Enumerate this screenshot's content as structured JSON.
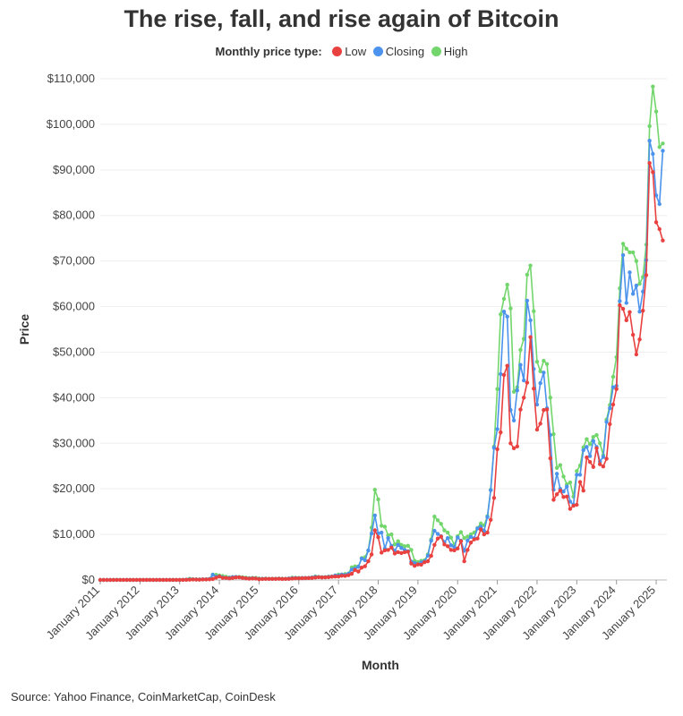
{
  "chart_data": {
    "type": "line",
    "title": "The rise, fall, and rise again of Bitcoin",
    "legend_title": "Monthly price type:",
    "legend_placement": "top",
    "xlabel": "Month",
    "ylabel": "Price",
    "ylim": [
      0,
      110000
    ],
    "yticks": [
      "$0",
      "$10,000",
      "$20,000",
      "$30,000",
      "$40,000",
      "$50,000",
      "$60,000",
      "$70,000",
      "$80,000",
      "$90,000",
      "$100,000",
      "$110,000"
    ],
    "xticks": [
      "January 2011",
      "January 2012",
      "January 2013",
      "January 2014",
      "January 2015",
      "January 2016",
      "January 2017",
      "January 2018",
      "January 2019",
      "January 2020",
      "January 2021",
      "January 2022",
      "January 2023",
      "January 2024",
      "January 2025"
    ],
    "grid": "horizontal",
    "series": [
      {
        "name": "Low",
        "key": "low",
        "color": "#e8413f"
      },
      {
        "name": "Closing",
        "key": "close",
        "color": "#4b93ec"
      },
      {
        "name": "High",
        "key": "high",
        "color": "#72d66c"
      }
    ],
    "years": [
      {
        "year": 2011,
        "low": [
          0.3,
          0.8,
          0.7,
          0.6,
          3,
          10,
          12,
          7,
          4,
          2,
          2,
          3
        ],
        "close": [
          0.9,
          1,
          0.8,
          3.5,
          8.7,
          16.1,
          13.4,
          8.2,
          5.1,
          3.2,
          3,
          4.7
        ],
        "high": [
          1.1,
          1.1,
          0.9,
          3.5,
          9,
          30,
          16,
          13,
          8,
          5,
          3.5,
          4.7
        ]
      },
      {
        "year": 2012,
        "low": [
          4.5,
          4.3,
          4.5,
          4.8,
          4.9,
          5.2,
          6.5,
          7.5,
          10,
          10,
          10.5,
          12
        ],
        "close": [
          5.5,
          4.9,
          4.9,
          5,
          5.2,
          6.7,
          9.3,
          10.2,
          12.4,
          11.2,
          12.6,
          13.5
        ],
        "high": [
          7,
          6.2,
          5.4,
          5.3,
          5.3,
          6.8,
          9.7,
          15.4,
          12.5,
          12.8,
          12.9,
          13.9
        ]
      },
      {
        "year": 2013,
        "low": [
          13,
          20,
          33,
          70,
          110,
          90,
          68,
          100,
          120,
          130,
          200,
          500
        ],
        "close": [
          20,
          33,
          93,
          139,
          129,
          97,
          106,
          135,
          133,
          198,
          1130,
          732
        ],
        "high": [
          20,
          33,
          95,
          260,
          140,
          130,
          110,
          140,
          140,
          200,
          1200,
          1150
        ]
      },
      {
        "year": 2014,
        "low": [
          740,
          450,
          450,
          340,
          440,
          560,
          570,
          450,
          360,
          290,
          320,
          310
        ],
        "close": [
          800,
          550,
          450,
          445,
          625,
          640,
          590,
          480,
          390,
          340,
          380,
          320
        ],
        "high": [
          1000,
          860,
          700,
          560,
          630,
          680,
          650,
          600,
          500,
          410,
          460,
          460
        ]
      },
      {
        "year": 2015,
        "low": [
          170,
          215,
          240,
          220,
          230,
          220,
          260,
          200,
          225,
          235,
          300,
          360
        ],
        "close": [
          220,
          255,
          245,
          235,
          230,
          265,
          285,
          230,
          235,
          315,
          380,
          430
        ],
        "high": [
          320,
          265,
          300,
          260,
          250,
          270,
          305,
          285,
          260,
          330,
          500,
          470
        ]
      },
      {
        "year": 2016,
        "low": [
          360,
          370,
          405,
          415,
          440,
          530,
          600,
          540,
          575,
          605,
          690,
          740
        ],
        "close": [
          370,
          435,
          415,
          450,
          530,
          670,
          625,
          575,
          610,
          700,
          745,
          960
        ],
        "high": [
          460,
          440,
          440,
          465,
          550,
          780,
          680,
          630,
          620,
          720,
          760,
          980
        ]
      },
      {
        "year": 2017,
        "low": [
          750,
          920,
          890,
          1050,
          1350,
          2200,
          1850,
          2700,
          3000,
          4100,
          5600,
          10900
        ],
        "close": [
          970,
          1190,
          1080,
          1350,
          2300,
          2500,
          2880,
          4700,
          4340,
          6470,
          10200,
          14160
        ],
        "high": [
          1190,
          1200,
          1300,
          1400,
          2760,
          2990,
          2950,
          4800,
          5000,
          6500,
          11500,
          19800
        ]
      },
      {
        "year": 2018,
        "low": [
          9400,
          6000,
          6500,
          6600,
          7100,
          5800,
          6100,
          5900,
          6100,
          6200,
          3600,
          3100
        ],
        "close": [
          10200,
          10400,
          6900,
          9200,
          7500,
          6400,
          7700,
          7000,
          6600,
          6300,
          4000,
          3700
        ],
        "high": [
          17700,
          11900,
          11700,
          9800,
          10000,
          7800,
          8500,
          7700,
          7400,
          7500,
          6600,
          4200
        ]
      },
      {
        "year": 2019,
        "low": [
          3400,
          3350,
          3900,
          4100,
          5300,
          7700,
          9100,
          9500,
          7800,
          7400,
          6600,
          6500
        ],
        "close": [
          3450,
          3850,
          4100,
          5350,
          8600,
          10800,
          10100,
          9600,
          8300,
          9200,
          7600,
          7200
        ],
        "high": [
          3950,
          4200,
          4300,
          5600,
          8900,
          13900,
          13100,
          12300,
          10900,
          10400,
          9300,
          7700
        ]
      },
      {
        "year": 2020,
        "low": [
          6900,
          8500,
          4100,
          6600,
          8200,
          8900,
          9100,
          11100,
          10000,
          10400,
          13200,
          18000
        ],
        "close": [
          9350,
          8600,
          6400,
          8650,
          9450,
          9150,
          11300,
          11700,
          10800,
          13800,
          19700,
          29000
        ],
        "high": [
          9600,
          10500,
          9200,
          9500,
          10000,
          10400,
          11400,
          12400,
          12000,
          14000,
          19800,
          29300
        ]
      },
      {
        "year": 2021,
        "low": [
          28700,
          32400,
          45000,
          47000,
          30000,
          28900,
          29300,
          37400,
          40000,
          43300,
          53300,
          42000
        ],
        "close": [
          33100,
          45200,
          58900,
          57800,
          37300,
          35000,
          41600,
          47200,
          43800,
          61300,
          57000,
          46300
        ],
        "high": [
          41900,
          58300,
          61700,
          64800,
          59600,
          41300,
          42300,
          50500,
          52900,
          67000,
          69000,
          59000
        ]
      },
      {
        "year": 2022,
        "low": [
          33000,
          34300,
          37300,
          37400,
          26700,
          17600,
          18800,
          19600,
          18200,
          18300,
          15600,
          16300
        ],
        "close": [
          38500,
          43200,
          45500,
          37700,
          31800,
          19800,
          23300,
          20000,
          19400,
          20500,
          17200,
          16500
        ],
        "high": [
          47900,
          45800,
          48100,
          47400,
          40000,
          32000,
          24600,
          25200,
          22700,
          21000,
          21400,
          18300
        ]
      },
      {
        "year": 2023,
        "low": [
          16500,
          21500,
          19600,
          26900,
          25900,
          24800,
          28900,
          25400,
          24900,
          26600,
          34200,
          38500
        ],
        "close": [
          23100,
          23100,
          28500,
          29200,
          27200,
          30500,
          29200,
          26000,
          27000,
          34700,
          37700,
          42300
        ],
        "high": [
          23900,
          25100,
          29100,
          30900,
          29800,
          31400,
          31800,
          30000,
          27400,
          35200,
          38400,
          44600
        ]
      },
      {
        "year": 2024,
        "low": [
          41900,
          60300,
          59500,
          57000,
          58800,
          53800,
          49500,
          52800,
          59100,
          66900,
          91500,
          89500
        ],
        "close": [
          42600,
          61200,
          71300,
          60800,
          67500,
          62800,
          64600,
          58900,
          63300,
          70200,
          96400,
          93500
        ],
        "high": [
          48900,
          64000,
          73800,
          72700,
          71900,
          71900,
          70000,
          65000,
          66500,
          73600,
          99600,
          108300
        ]
      },
      {
        "year": 2025,
        "low": [
          78500,
          77000,
          74500
        ],
        "close": [
          84400,
          82500,
          94200
        ],
        "high": [
          102800,
          95000,
          95800
        ]
      }
    ]
  },
  "source": "Source: Yahoo Finance, CoinMarketCap, CoinDesk"
}
